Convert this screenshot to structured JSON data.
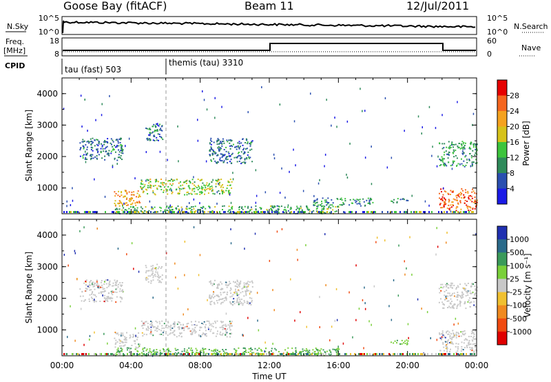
{
  "header": {
    "station": "Goose Bay (fitACF)",
    "beam": "Beam 11",
    "date": "12/Jul/2011"
  },
  "left_labels": {
    "nsky": "N.Sky",
    "freq_line1": "Freq.",
    "freq_line2": "[MHz]",
    "cpid": "CPID"
  },
  "right_labels": {
    "nsearch": "N.Search",
    "nave": "Nave"
  },
  "panels": {
    "noise": {
      "left_ticks": [
        "10^5",
        "10^0"
      ],
      "right_ticks": [
        "10^5",
        "10^0"
      ]
    },
    "freq": {
      "left_ticks": [
        "18",
        "8"
      ],
      "right_ticks": [
        "60",
        "0"
      ]
    }
  },
  "cpid_segments": [
    {
      "label": "tau (fast) 503",
      "start_hour": 0
    },
    {
      "label": "themis (tau) 3310",
      "start_hour": 6
    }
  ],
  "colorbar_power": {
    "title": "Power [dB]",
    "ticks": [
      "28",
      "24",
      "20",
      "16",
      "12",
      "8",
      "4"
    ],
    "colors": [
      "#e60000",
      "#f5661f",
      "#f5a21f",
      "#d6c21a",
      "#3cc43c",
      "#2e8a5a",
      "#2a4fb0",
      "#1a1ae6"
    ]
  },
  "colorbar_velocity": {
    "title": "Velocity [m s⁻¹]",
    "ticks": [
      "1000",
      "500",
      "100",
      "25",
      "-25",
      "-100",
      "-500",
      "-1000"
    ],
    "colors": [
      "#1f2fb0",
      "#2a6a8a",
      "#3a9a5a",
      "#7ad03a",
      "#c8c8c8",
      "#f0c030",
      "#f08a20",
      "#f04a10",
      "#e00000"
    ]
  },
  "chart_data": [
    {
      "type": "heatmap",
      "title": "",
      "xlabel": "",
      "ylabel": "Slant Range [km]",
      "xlim": [
        0,
        24
      ],
      "ylim": [
        180,
        4500
      ],
      "x_ticks": [
        "00:00",
        "04:00",
        "08:00",
        "12:00",
        "16:00",
        "20:00",
        "00:00"
      ],
      "y_ticks": [
        "1000",
        "2000",
        "3000",
        "4000"
      ],
      "colorbar": "Power [dB]",
      "regions": [
        {
          "t0": 3.0,
          "t1": 4.5,
          "r0": 450,
          "r1": 950,
          "dB": 20
        },
        {
          "t0": 4.5,
          "t1": 9.8,
          "r0": 800,
          "r1": 1300,
          "dB": 14
        },
        {
          "t0": 21.8,
          "t1": 24,
          "r0": 300,
          "r1": 1000,
          "dB": 24
        },
        {
          "t0": 21.8,
          "t1": 24,
          "r0": 1700,
          "r1": 2500,
          "dB": 8
        },
        {
          "t0": 1.0,
          "t1": 3.5,
          "r0": 1900,
          "r1": 2600,
          "dB": 6
        },
        {
          "t0": 4.8,
          "t1": 5.8,
          "r0": 2500,
          "r1": 3100,
          "dB": 6
        },
        {
          "t0": 8.5,
          "t1": 11.0,
          "r0": 1800,
          "r1": 2600,
          "dB": 6
        },
        {
          "t0": 3.0,
          "t1": 16.0,
          "r0": 200,
          "r1": 450,
          "dB": 10
        },
        {
          "t0": 14.5,
          "t1": 18.0,
          "r0": 450,
          "r1": 700,
          "dB": 8
        },
        {
          "t0": 19.0,
          "t1": 20.0,
          "r0": 550,
          "r1": 700,
          "dB": 8
        }
      ]
    },
    {
      "type": "heatmap",
      "title": "",
      "xlabel": "Time UT",
      "ylabel": "Slant Range [km]",
      "xlim": [
        0,
        24
      ],
      "ylim": [
        180,
        4500
      ],
      "x_ticks": [
        "00:00",
        "04:00",
        "08:00",
        "12:00",
        "16:00",
        "20:00",
        "00:00"
      ],
      "y_ticks": [
        "1000",
        "2000",
        "3000",
        "4000"
      ],
      "colorbar": "Velocity [m s⁻¹]",
      "regions": [
        {
          "t0": 3.0,
          "t1": 4.5,
          "r0": 450,
          "r1": 950,
          "v": 0
        },
        {
          "t0": 4.5,
          "t1": 9.8,
          "r0": 800,
          "r1": 1300,
          "v": 0
        },
        {
          "t0": 21.8,
          "t1": 24,
          "r0": 300,
          "r1": 1000,
          "v": 0
        },
        {
          "t0": 21.8,
          "t1": 24,
          "r0": 1700,
          "r1": 2500,
          "v": 0
        },
        {
          "t0": 1.0,
          "t1": 3.5,
          "r0": 1900,
          "r1": 2600,
          "v": 0
        },
        {
          "t0": 4.8,
          "t1": 5.8,
          "r0": 2500,
          "r1": 3100,
          "v": 0
        },
        {
          "t0": 8.5,
          "t1": 11.0,
          "r0": 1800,
          "r1": 2600,
          "v": 0
        },
        {
          "t0": 3.0,
          "t1": 16.0,
          "r0": 200,
          "r1": 450,
          "v": 60
        },
        {
          "t0": 19.0,
          "t1": 20.0,
          "r0": 550,
          "r1": 700,
          "v": 150
        }
      ]
    }
  ]
}
